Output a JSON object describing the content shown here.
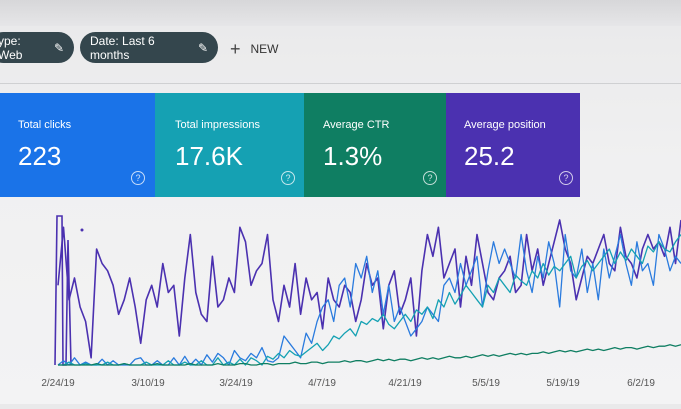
{
  "filters": {
    "type_chip": "ype: Web",
    "date_chip": "Date: Last 6 months",
    "new_label": "NEW",
    "edit_icon": "pencil-icon"
  },
  "metrics": [
    {
      "label": "Total clicks",
      "value": "223",
      "color": "#1a73e8"
    },
    {
      "label": "Total impressions",
      "value": "17.6K",
      "color": "#15a1b3"
    },
    {
      "label": "Average CTR",
      "value": "1.3%",
      "color": "#0f7e62"
    },
    {
      "label": "Average position",
      "value": "25.2",
      "color": "#4b31b0"
    }
  ],
  "chart_data": {
    "type": "line",
    "x_tick_labels": [
      "2/24/19",
      "3/10/19",
      "3/24/19",
      "4/7/19",
      "4/21/19",
      "5/5/19",
      "5/19/19",
      "6/2/19"
    ],
    "series": [
      {
        "color": "#4b31b0",
        "values": [
          55,
          95,
          45,
          60,
          40,
          30,
          5,
          80,
          70,
          65,
          55,
          35,
          45,
          60,
          40,
          15,
          45,
          55,
          40,
          70,
          50,
          55,
          20,
          60,
          90,
          50,
          35,
          30,
          75,
          40,
          45,
          60,
          50,
          95,
          85,
          55,
          65,
          70,
          90,
          45,
          30,
          55,
          40,
          70,
          35,
          60,
          45,
          50,
          25,
          60,
          45,
          40,
          55,
          50,
          30,
          45,
          70,
          55,
          60,
          25,
          55,
          65,
          35,
          45,
          60,
          20,
          65,
          90,
          75,
          95,
          60,
          70,
          80,
          40,
          75,
          55,
          90,
          70,
          50,
          45,
          60,
          65,
          75,
          50,
          55,
          90,
          65,
          80,
          55,
          70,
          85,
          100,
          80,
          70,
          45,
          60,
          75,
          70,
          80,
          90,
          70,
          65,
          95,
          75,
          70,
          60,
          80,
          90,
          80,
          85,
          75,
          95,
          70,
          100
        ]
      },
      {
        "color": "#2a7bde",
        "values": [
          0,
          3,
          0,
          5,
          0,
          2,
          0,
          0,
          4,
          0,
          3,
          0,
          0,
          0,
          4,
          5,
          0,
          0,
          3,
          0,
          0,
          5,
          0,
          6,
          0,
          4,
          0,
          7,
          2,
          8,
          5,
          0,
          10,
          5,
          3,
          8,
          5,
          12,
          3,
          2,
          5,
          20,
          15,
          10,
          5,
          22,
          15,
          30,
          40,
          45,
          30,
          55,
          60,
          40,
          70,
          60,
          75,
          50,
          65,
          35,
          55,
          30,
          40,
          30,
          20,
          25,
          30,
          40,
          35,
          30,
          55,
          60,
          50,
          70,
          55,
          65,
          75,
          40,
          65,
          85,
          70,
          80,
          70,
          60,
          90,
          65,
          50,
          75,
          60,
          85,
          70,
          40,
          90,
          65,
          60,
          80,
          50,
          70,
          45,
          80,
          60,
          75,
          90,
          70,
          55,
          85,
          65,
          70,
          55,
          90,
          80,
          65,
          75,
          70
        ]
      },
      {
        "color": "#15a1b3",
        "values": [
          0,
          0,
          2,
          0,
          0,
          1,
          0,
          0,
          0,
          2,
          0,
          0,
          1,
          0,
          0,
          0,
          2,
          0,
          0,
          0,
          3,
          0,
          0,
          2,
          0,
          0,
          3,
          0,
          0,
          5,
          0,
          2,
          0,
          4,
          0,
          5,
          3,
          0,
          6,
          4,
          8,
          5,
          10,
          7,
          6,
          9,
          12,
          15,
          10,
          14,
          20,
          18,
          22,
          25,
          20,
          30,
          28,
          32,
          30,
          35,
          28,
          25,
          30,
          35,
          30,
          38,
          35,
          40,
          32,
          45,
          40,
          50,
          42,
          48,
          55,
          50,
          45,
          40,
          55,
          50,
          60,
          55,
          50,
          62,
          58,
          55,
          65,
          60,
          70,
          62,
          68,
          65,
          70,
          75,
          60,
          68,
          72,
          65,
          70,
          75,
          80,
          70,
          78,
          72,
          80,
          75,
          70,
          82,
          78,
          85,
          80,
          78,
          85,
          90
        ]
      },
      {
        "color": "#0f7e62",
        "values": [
          0,
          0,
          0,
          0,
          0,
          0,
          0,
          1,
          0,
          0,
          0,
          0,
          1,
          0,
          0,
          0,
          0,
          0,
          1,
          0,
          0,
          0,
          0,
          0,
          1,
          0,
          0,
          0,
          0,
          1,
          0,
          0,
          0,
          1,
          1,
          0,
          0,
          1,
          1,
          0,
          1,
          1,
          1,
          2,
          1,
          1,
          2,
          2,
          1,
          2,
          2,
          2,
          3,
          2,
          3,
          3,
          2,
          3,
          4,
          3,
          4,
          3,
          4,
          4,
          3,
          4,
          5,
          4,
          5,
          4,
          5,
          6,
          5,
          5,
          6,
          5,
          6,
          7,
          6,
          7,
          6,
          7,
          8,
          7,
          8,
          7,
          8,
          8,
          9,
          8,
          9,
          10,
          9,
          10,
          9,
          10,
          11,
          10,
          11,
          10,
          11,
          12,
          11,
          12,
          12,
          11,
          12,
          13,
          12,
          13,
          13,
          14,
          13,
          14
        ]
      }
    ],
    "grid": false
  }
}
